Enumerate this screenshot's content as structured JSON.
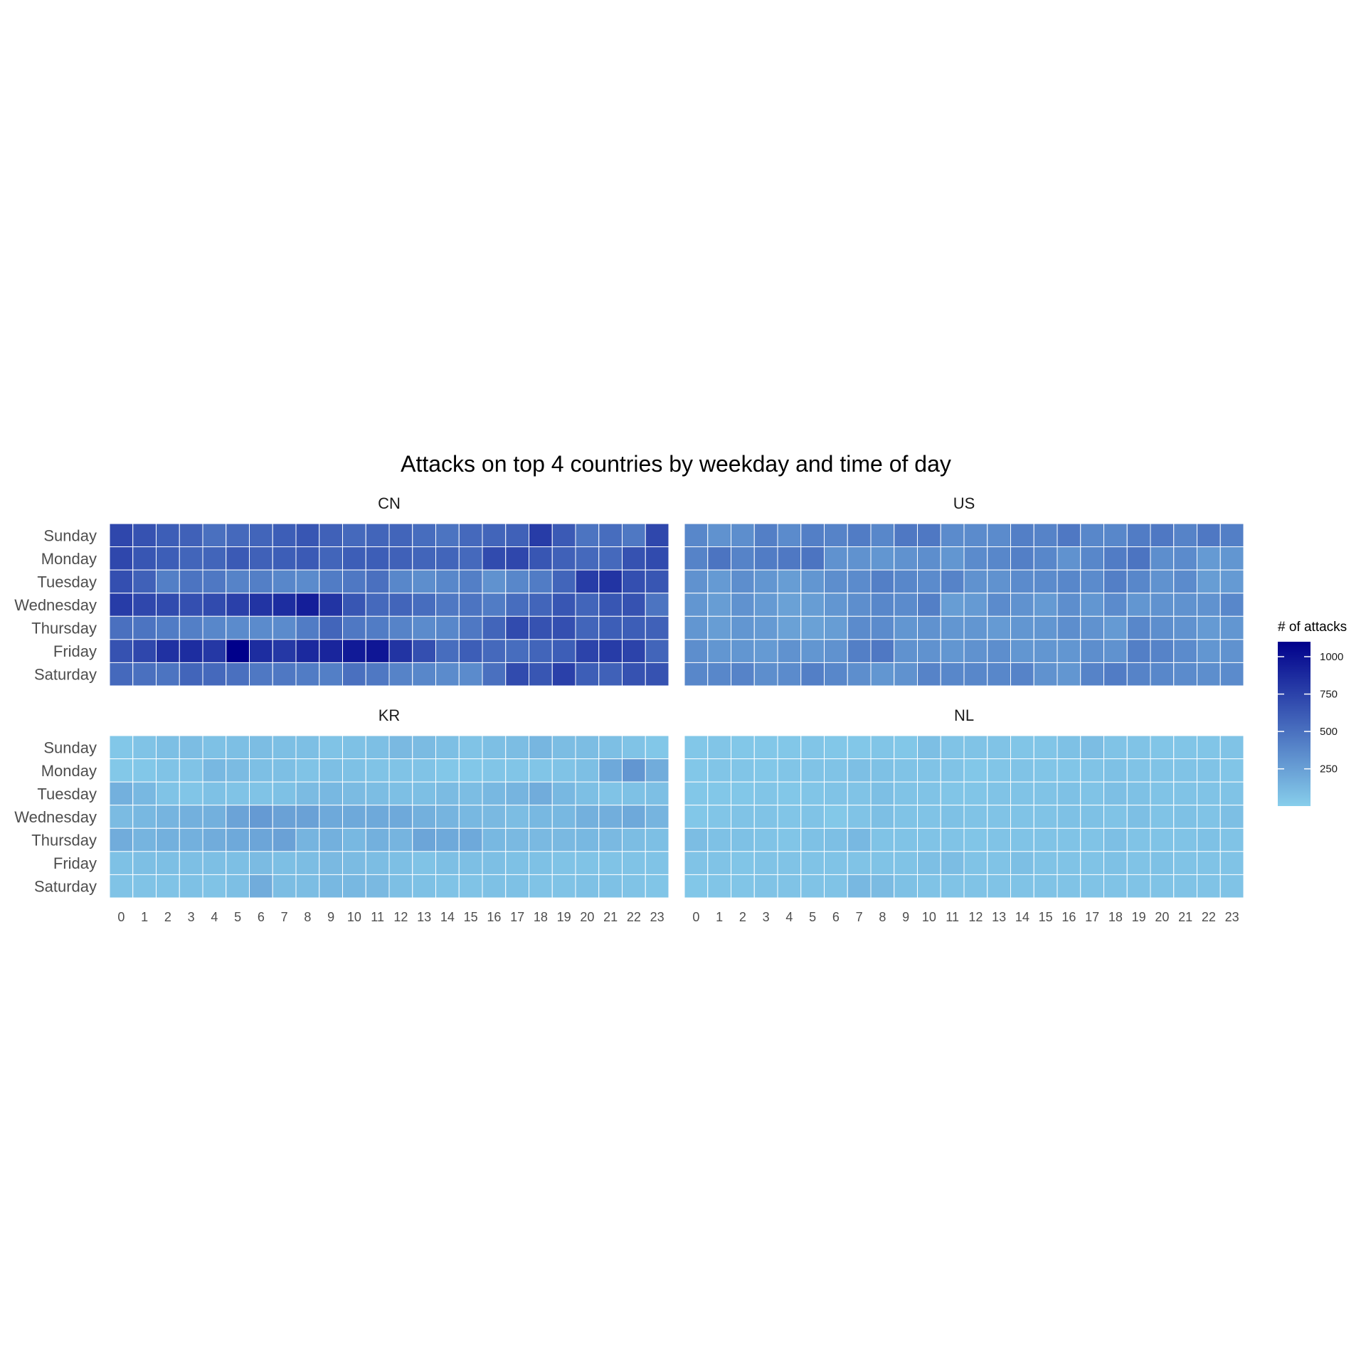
{
  "chart_data": {
    "type": "heatmap",
    "title": "Attacks on top 4 countries by weekday and time of day",
    "xlabel": "",
    "ylabel": "",
    "x_categories": [
      "0",
      "1",
      "2",
      "3",
      "4",
      "5",
      "6",
      "7",
      "8",
      "9",
      "10",
      "11",
      "12",
      "13",
      "14",
      "15",
      "16",
      "17",
      "18",
      "19",
      "20",
      "21",
      "22",
      "23"
    ],
    "y_categories": [
      "Sunday",
      "Monday",
      "Tuesday",
      "Wednesday",
      "Thursday",
      "Friday",
      "Saturday"
    ],
    "facet_layout": "2x2",
    "facets": [
      {
        "name": "CN",
        "values": [
          [
            720,
            660,
            600,
            580,
            500,
            540,
            560,
            600,
            640,
            580,
            540,
            560,
            560,
            520,
            480,
            540,
            560,
            580,
            780,
            620,
            480,
            520,
            460,
            720
          ],
          [
            720,
            640,
            600,
            560,
            560,
            620,
            580,
            600,
            620,
            560,
            600,
            600,
            580,
            560,
            560,
            540,
            700,
            720,
            640,
            580,
            540,
            540,
            660,
            700
          ],
          [
            680,
            580,
            420,
            480,
            460,
            400,
            420,
            380,
            360,
            440,
            460,
            500,
            380,
            340,
            380,
            420,
            320,
            380,
            440,
            560,
            780,
            820,
            680,
            640
          ],
          [
            780,
            720,
            700,
            680,
            700,
            760,
            820,
            860,
            940,
            820,
            640,
            540,
            560,
            520,
            460,
            480,
            440,
            520,
            560,
            640,
            560,
            640,
            660,
            480
          ],
          [
            500,
            480,
            440,
            420,
            380,
            360,
            360,
            360,
            440,
            560,
            460,
            440,
            400,
            360,
            380,
            460,
            560,
            700,
            660,
            680,
            560,
            600,
            600,
            580
          ],
          [
            660,
            720,
            840,
            860,
            800,
            1100,
            860,
            800,
            880,
            900,
            960,
            980,
            820,
            680,
            520,
            600,
            540,
            520,
            560,
            600,
            740,
            780,
            740,
            560
          ],
          [
            540,
            500,
            480,
            560,
            540,
            500,
            460,
            460,
            440,
            420,
            500,
            460,
            400,
            380,
            360,
            360,
            500,
            700,
            640,
            760,
            600,
            580,
            660,
            660
          ]
        ]
      },
      {
        "name": "US",
        "values": [
          [
            380,
            320,
            340,
            420,
            360,
            420,
            400,
            440,
            380,
            460,
            460,
            360,
            360,
            360,
            420,
            400,
            460,
            380,
            380,
            440,
            460,
            400,
            460,
            420
          ],
          [
            400,
            480,
            400,
            440,
            460,
            480,
            320,
            320,
            300,
            320,
            340,
            300,
            360,
            380,
            420,
            380,
            320,
            380,
            440,
            480,
            340,
            360,
            280,
            300
          ],
          [
            320,
            280,
            340,
            300,
            260,
            300,
            340,
            360,
            420,
            380,
            360,
            400,
            320,
            320,
            360,
            360,
            380,
            360,
            420,
            380,
            320,
            360,
            260,
            280
          ],
          [
            300,
            260,
            320,
            280,
            240,
            260,
            300,
            340,
            380,
            360,
            420,
            260,
            280,
            360,
            320,
            280,
            340,
            300,
            360,
            300,
            320,
            320,
            320,
            380
          ],
          [
            300,
            260,
            300,
            280,
            240,
            240,
            260,
            360,
            360,
            300,
            320,
            300,
            300,
            280,
            300,
            300,
            340,
            320,
            280,
            380,
            340,
            320,
            280,
            300
          ],
          [
            340,
            300,
            300,
            280,
            320,
            300,
            320,
            420,
            460,
            320,
            320,
            300,
            320,
            340,
            300,
            300,
            300,
            340,
            320,
            420,
            400,
            360,
            300,
            320
          ],
          [
            380,
            380,
            400,
            340,
            360,
            420,
            380,
            340,
            300,
            320,
            400,
            380,
            380,
            380,
            400,
            320,
            300,
            400,
            440,
            400,
            380,
            360,
            340,
            360
          ]
        ]
      },
      {
        "name": "KR",
        "values": [
          [
            40,
            60,
            80,
            90,
            70,
            80,
            90,
            80,
            80,
            60,
            70,
            80,
            110,
            100,
            80,
            60,
            80,
            90,
            130,
            90,
            90,
            80,
            60,
            40
          ],
          [
            30,
            40,
            60,
            60,
            120,
            100,
            80,
            80,
            60,
            80,
            70,
            60,
            60,
            60,
            40,
            40,
            50,
            50,
            50,
            60,
            80,
            200,
            300,
            180
          ],
          [
            160,
            120,
            60,
            50,
            70,
            60,
            60,
            70,
            100,
            120,
            100,
            90,
            80,
            80,
            100,
            90,
            120,
            140,
            180,
            120,
            80,
            60,
            70,
            80
          ],
          [
            100,
            120,
            140,
            160,
            160,
            230,
            280,
            240,
            240,
            200,
            200,
            200,
            200,
            160,
            140,
            120,
            110,
            90,
            120,
            120,
            160,
            170,
            200,
            140
          ],
          [
            180,
            140,
            160,
            160,
            180,
            200,
            220,
            240,
            140,
            160,
            120,
            160,
            140,
            220,
            200,
            200,
            120,
            110,
            110,
            110,
            120,
            110,
            90,
            80
          ],
          [
            70,
            80,
            80,
            80,
            80,
            80,
            100,
            80,
            90,
            110,
            100,
            90,
            80,
            60,
            80,
            80,
            80,
            70,
            70,
            60,
            60,
            60,
            60,
            60
          ],
          [
            60,
            60,
            60,
            70,
            60,
            80,
            180,
            90,
            90,
            120,
            120,
            110,
            80,
            70,
            60,
            60,
            70,
            70,
            60,
            60,
            70,
            70,
            60,
            50
          ]
        ]
      },
      {
        "name": "NL",
        "values": [
          [
            40,
            50,
            40,
            40,
            40,
            50,
            40,
            40,
            50,
            40,
            80,
            60,
            60,
            60,
            50,
            50,
            70,
            90,
            60,
            60,
            50,
            50,
            50,
            60
          ],
          [
            40,
            50,
            50,
            40,
            50,
            60,
            60,
            80,
            70,
            60,
            60,
            60,
            40,
            50,
            60,
            50,
            50,
            60,
            70,
            60,
            60,
            60,
            60,
            50
          ],
          [
            40,
            40,
            40,
            50,
            40,
            50,
            60,
            60,
            80,
            60,
            60,
            50,
            50,
            60,
            60,
            60,
            70,
            60,
            80,
            70,
            60,
            60,
            60,
            60
          ],
          [
            40,
            50,
            60,
            60,
            50,
            60,
            30,
            60,
            80,
            60,
            60,
            70,
            60,
            60,
            60,
            60,
            70,
            70,
            60,
            80,
            60,
            70,
            60,
            80
          ],
          [
            90,
            70,
            70,
            60,
            50,
            70,
            80,
            120,
            60,
            60,
            60,
            60,
            50,
            60,
            60,
            60,
            60,
            60,
            80,
            60,
            60,
            60,
            70,
            60
          ],
          [
            60,
            60,
            50,
            60,
            60,
            60,
            60,
            60,
            60,
            60,
            80,
            90,
            60,
            60,
            80,
            60,
            60,
            60,
            70,
            60,
            70,
            60,
            60,
            60
          ],
          [
            40,
            50,
            50,
            60,
            60,
            60,
            60,
            120,
            100,
            70,
            60,
            60,
            60,
            60,
            60,
            60,
            60,
            60,
            60,
            60,
            60,
            60,
            60,
            60
          ]
        ]
      }
    ],
    "color_scale": {
      "low": "#87CEEB",
      "high": "#00008B",
      "domain": [
        0,
        1100
      ]
    },
    "legend": {
      "title": "# of attacks",
      "ticks": [
        250,
        500,
        750,
        1000
      ],
      "placement": "right"
    }
  }
}
